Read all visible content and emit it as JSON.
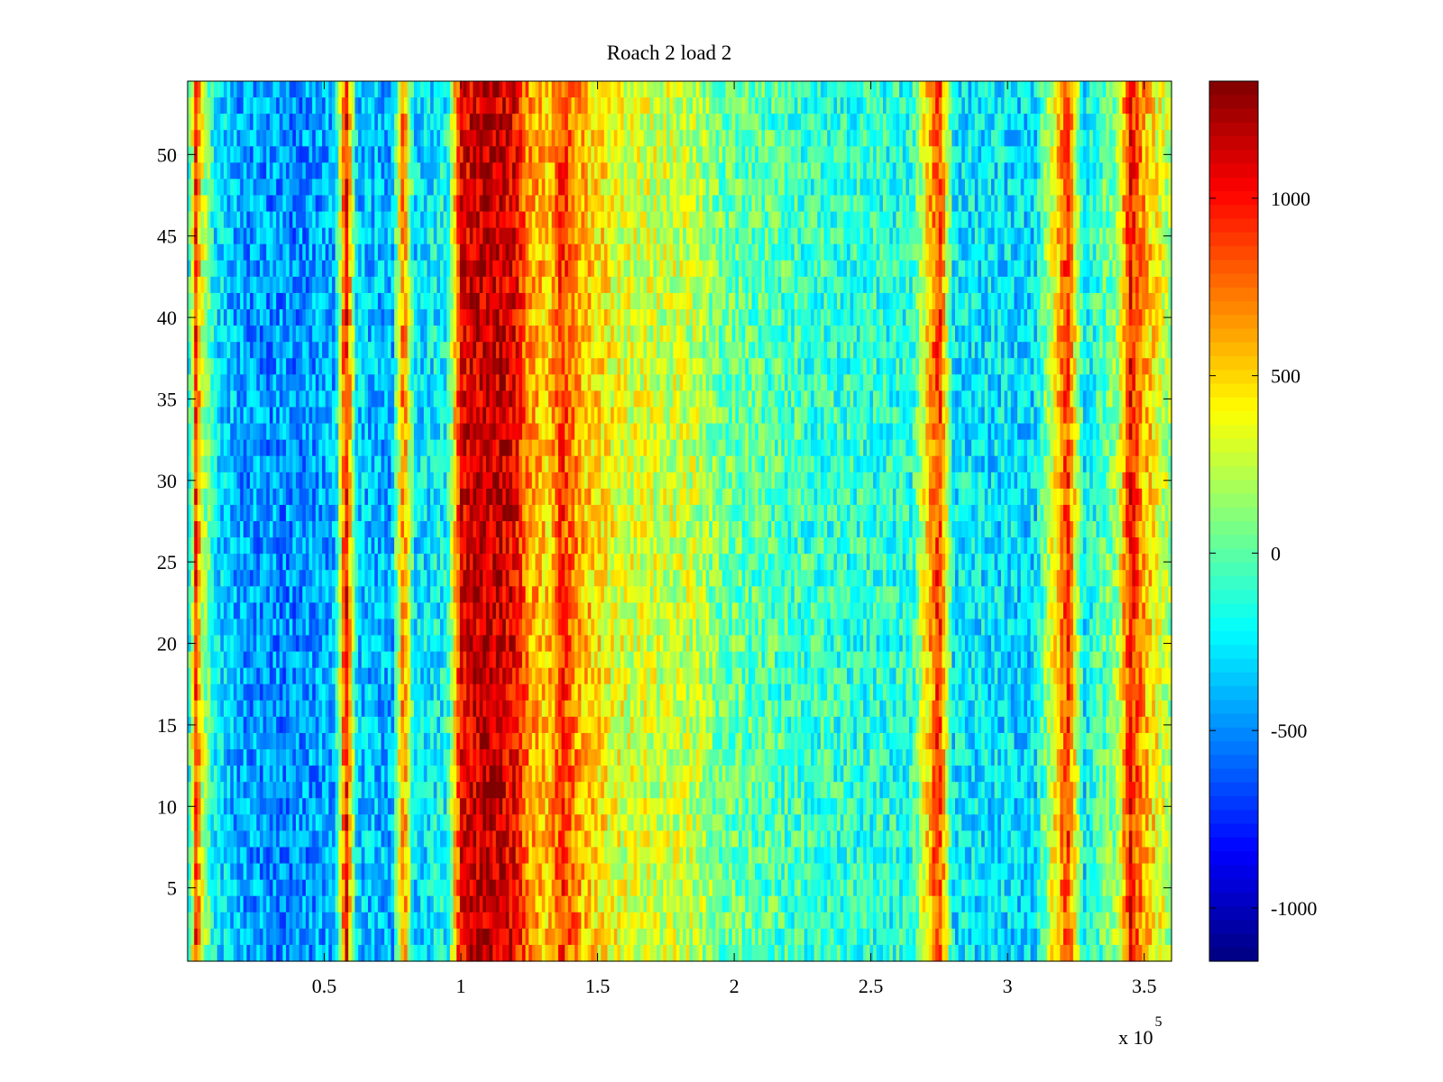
{
  "chart_data": {
    "type": "heatmap",
    "title": "Roach 2 load 2",
    "xlabel": "",
    "ylabel": "",
    "x_exponent_label": "x 10",
    "x_exponent_power": "5",
    "xlim": [
      0,
      360000
    ],
    "ylim": [
      0.5,
      54.5
    ],
    "rows": 54,
    "x_ticks": [
      50000,
      100000,
      150000,
      200000,
      250000,
      300000,
      350000
    ],
    "x_tick_labels": [
      "0.5",
      "1",
      "1.5",
      "2",
      "2.5",
      "3",
      "3.5"
    ],
    "y_ticks": [
      5,
      10,
      15,
      20,
      25,
      30,
      35,
      40,
      45,
      50
    ],
    "y_tick_labels": [
      "5",
      "10",
      "15",
      "20",
      "25",
      "30",
      "35",
      "40",
      "45",
      "50"
    ],
    "colorbar": {
      "colormap": "jet",
      "clim": [
        -1150,
        1330
      ],
      "ticks": [
        -1000,
        -500,
        0,
        500,
        1000
      ],
      "tick_labels": [
        "-1000",
        "-500",
        "0",
        "500",
        "1000"
      ]
    },
    "column_profile": [
      {
        "x": 1000,
        "value": -100
      },
      {
        "x": 3000,
        "value": 900
      },
      {
        "x": 5500,
        "value": 250
      },
      {
        "x": 10000,
        "value": -250
      },
      {
        "x": 20000,
        "value": -450
      },
      {
        "x": 40000,
        "value": -500
      },
      {
        "x": 54000,
        "value": -400
      },
      {
        "x": 58000,
        "value": 1050
      },
      {
        "x": 62000,
        "value": -350
      },
      {
        "x": 75000,
        "value": -400
      },
      {
        "x": 79000,
        "value": 800
      },
      {
        "x": 83000,
        "value": -300
      },
      {
        "x": 95000,
        "value": -200
      },
      {
        "x": 100000,
        "value": 1050
      },
      {
        "x": 110000,
        "value": 1200
      },
      {
        "x": 120000,
        "value": 1050
      },
      {
        "x": 125000,
        "value": 650
      },
      {
        "x": 132000,
        "value": 500
      },
      {
        "x": 137000,
        "value": 900
      },
      {
        "x": 145000,
        "value": 550
      },
      {
        "x": 160000,
        "value": 300
      },
      {
        "x": 185000,
        "value": 250
      },
      {
        "x": 195000,
        "value": 50
      },
      {
        "x": 230000,
        "value": -100
      },
      {
        "x": 265000,
        "value": -150
      },
      {
        "x": 275000,
        "value": 950
      },
      {
        "x": 280000,
        "value": -250
      },
      {
        "x": 310000,
        "value": -300
      },
      {
        "x": 322000,
        "value": 900
      },
      {
        "x": 328000,
        "value": -250
      },
      {
        "x": 340000,
        "value": 150
      },
      {
        "x": 345000,
        "value": 1000
      },
      {
        "x": 350000,
        "value": 600
      },
      {
        "x": 360000,
        "value": 150
      }
    ],
    "grid": false,
    "legend": "none"
  }
}
